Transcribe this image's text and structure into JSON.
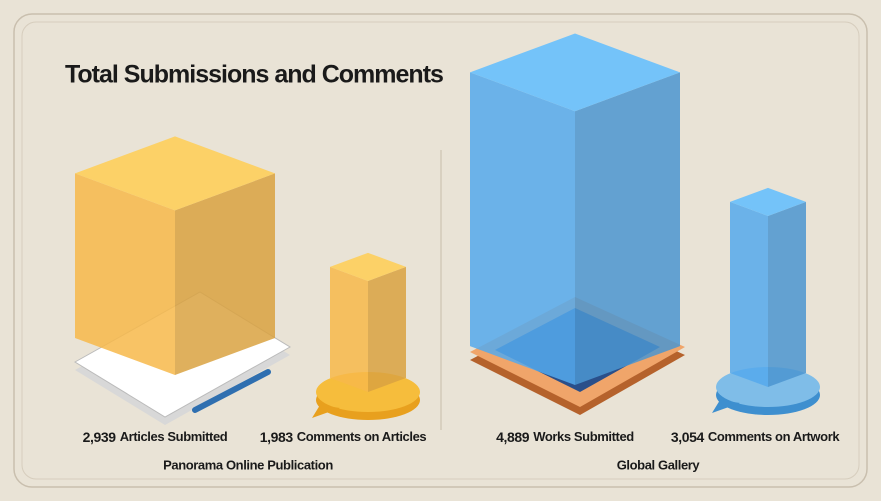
{
  "chart_data": {
    "type": "isometric-bar",
    "title": "Total Submissions and Comments",
    "groups": [
      {
        "name": "Panorama Online Publication",
        "color": "#f7b84a",
        "categories": [
          "Articles Submitted",
          "Comments on Articles"
        ],
        "values": [
          2939,
          1983
        ],
        "value_labels": [
          "2,939",
          "1,983"
        ]
      },
      {
        "name": "Global Gallery",
        "color": "#55a9ec",
        "categories": [
          "Works Submitted",
          "Comments on Artwork"
        ],
        "values": [
          4889,
          3054
        ],
        "value_labels": [
          "4,889",
          "3,054"
        ]
      }
    ]
  }
}
